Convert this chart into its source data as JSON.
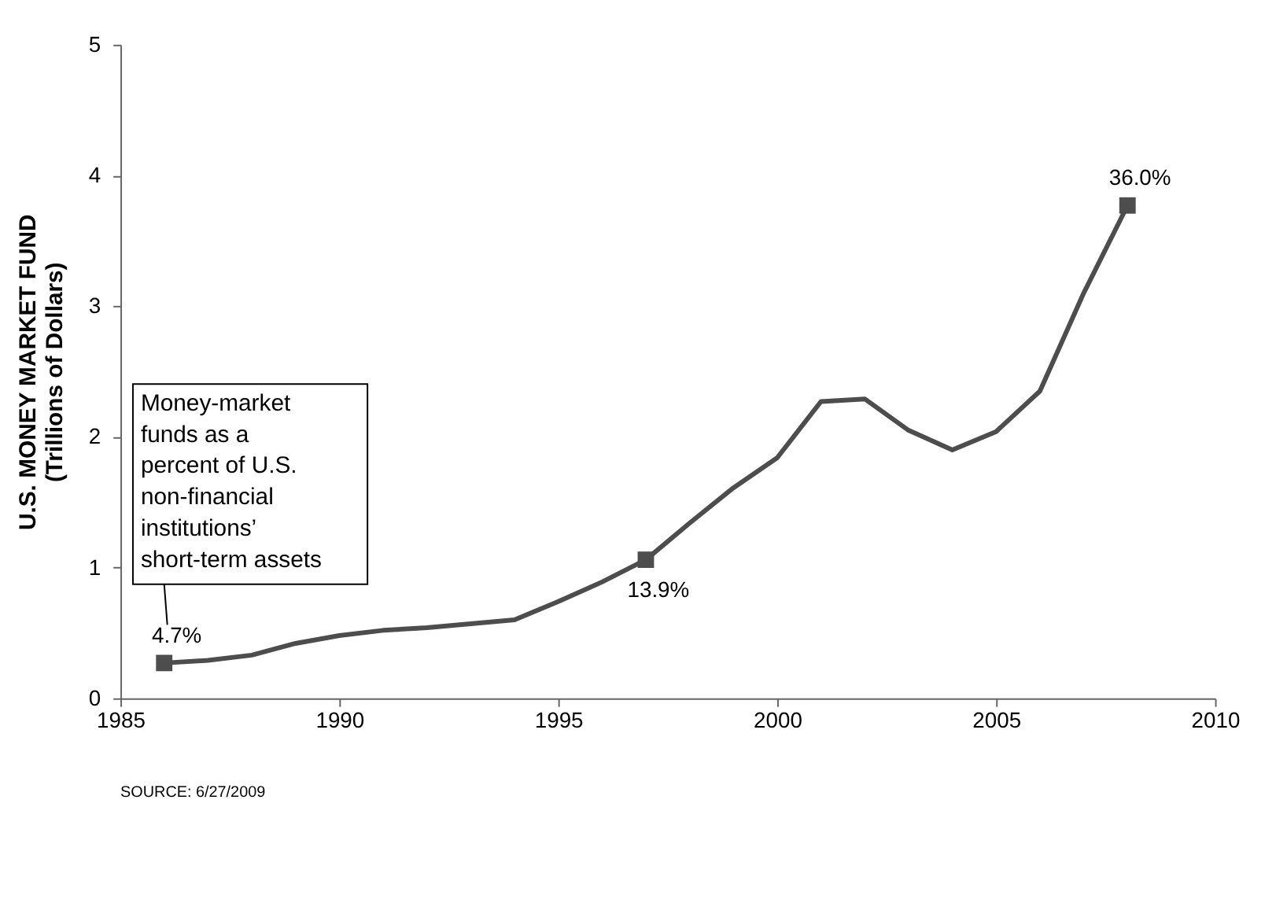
{
  "chart_data": {
    "type": "line",
    "ylabel": "U.S. MONEY MARKET FUND\n(Trillions of Dollars)",
    "xlim": [
      1985,
      2010
    ],
    "xticks": [
      1985,
      1990,
      1995,
      2000,
      2005,
      2010
    ],
    "ylim": [
      0,
      5
    ],
    "yticks": [
      0,
      1,
      2,
      3,
      4,
      5
    ],
    "grid": false,
    "series": [
      {
        "color": "#4d4d4d",
        "marker": "none",
        "x": [
          1986,
          1987,
          1988,
          1989,
          1990,
          1991,
          1992,
          1993,
          1994,
          1995,
          1996,
          1997,
          1998,
          1999,
          2000,
          2001,
          2002,
          2003,
          2004,
          2005,
          2006,
          2007,
          2008
        ],
        "values": [
          0.27,
          0.29,
          0.33,
          0.42,
          0.48,
          0.52,
          0.54,
          0.57,
          0.6,
          0.74,
          0.89,
          1.06,
          1.34,
          1.61,
          1.84,
          2.27,
          2.29,
          2.05,
          1.9,
          2.04,
          2.35,
          3.1,
          3.77
        ]
      },
      {
        "type": "scatter",
        "color": "#4d4d4d",
        "marker": "square",
        "x": [
          1986,
          1997,
          2008
        ],
        "values": [
          0.27,
          1.06,
          3.77
        ]
      }
    ],
    "annotations": [
      {
        "text": "4.7%",
        "x": 1986,
        "y": 0.27
      },
      {
        "text": "13.9%",
        "x": 1997,
        "y": 1.06
      },
      {
        "text": "36.0%",
        "x": 2008,
        "y": 3.77
      },
      "Money-market\nfunds as a\npercent of U.S.\nnon-financial\ninstitutions’\nshort-term assets",
      "SOURCE: 6/27/2009"
    ]
  }
}
